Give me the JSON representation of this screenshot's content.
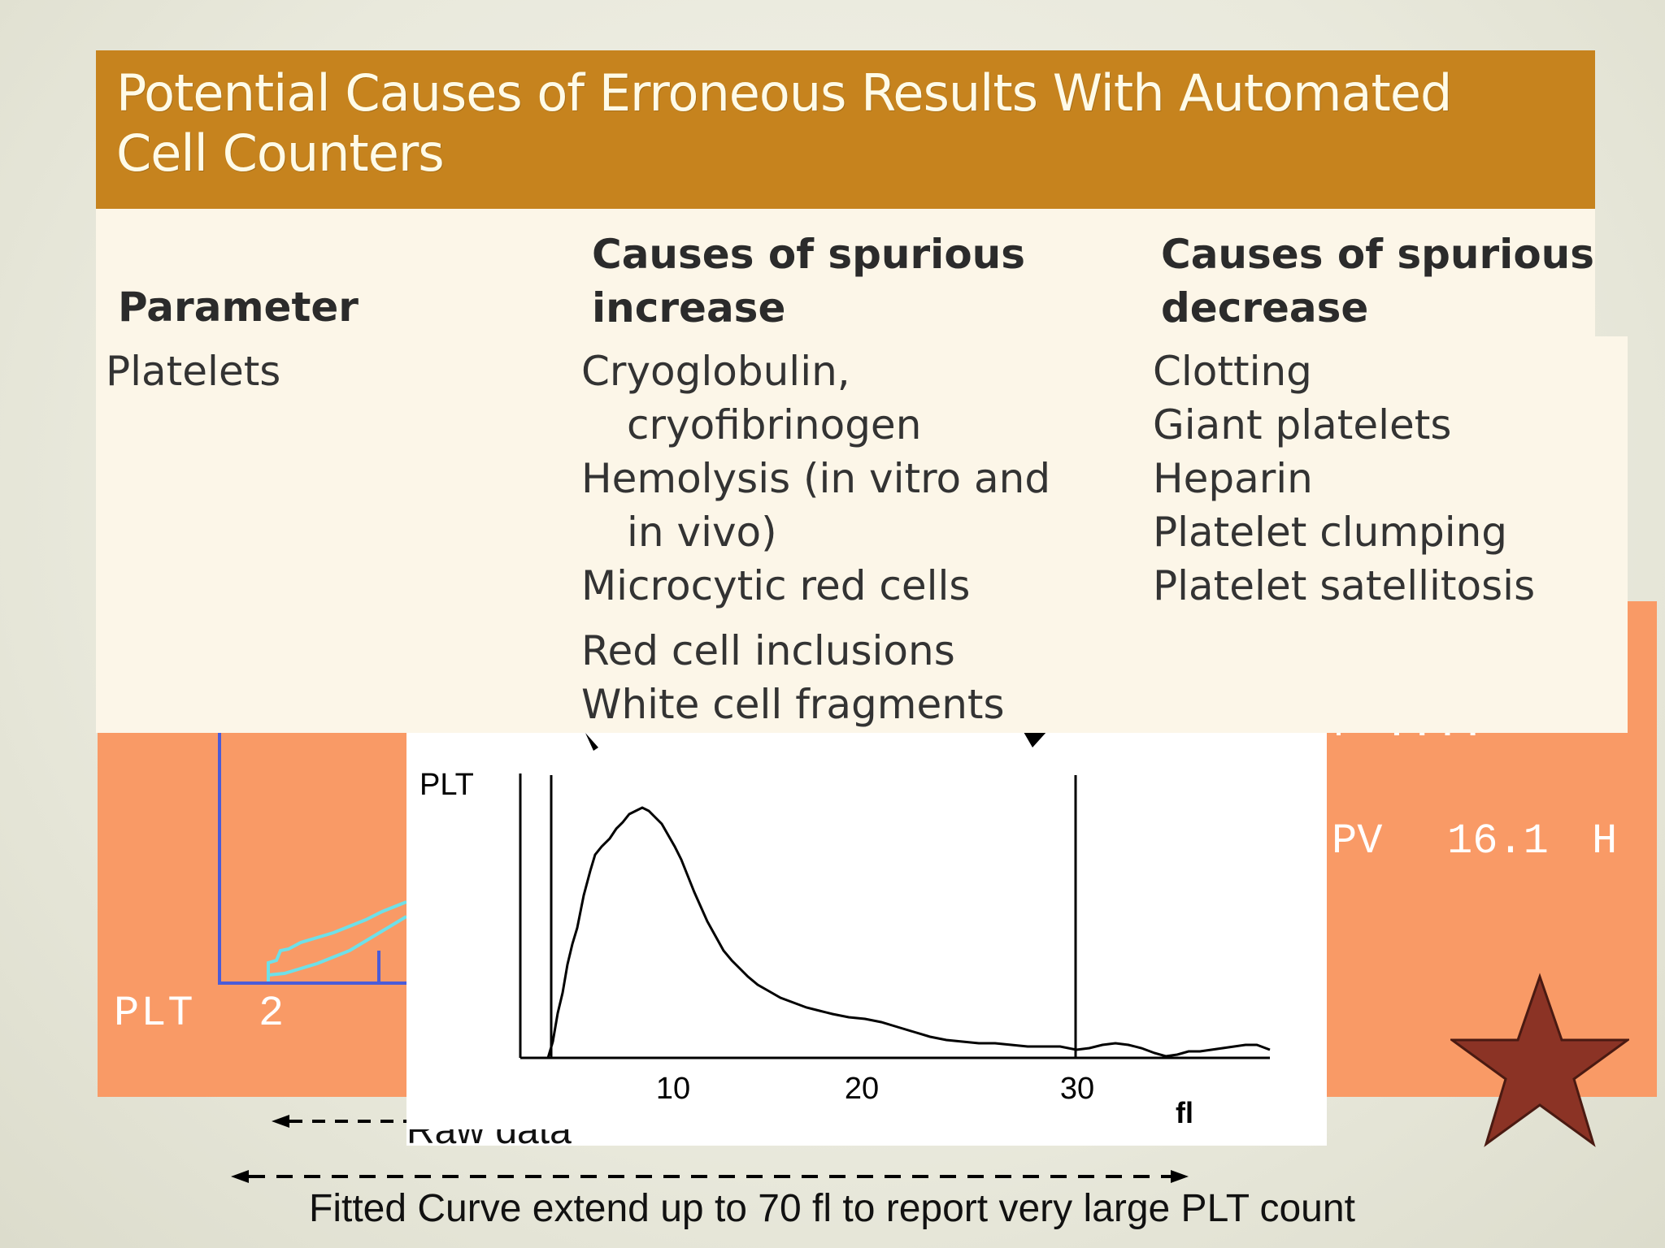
{
  "table": {
    "title_line1": "Potential Causes of Erroneous Results With Automated",
    "title_line2": "Cell Counters",
    "col_parameter": "Parameter",
    "col_increase_line1": "Causes of spurious",
    "col_increase_line2": "increase",
    "col_decrease_line1": "Causes of spurious",
    "col_decrease_line2": "decrease",
    "row": {
      "parameter": "Platelets",
      "increase": [
        {
          "text": "Cryoglobulin,",
          "indent": false
        },
        {
          "text": "cryofibrinogen",
          "indent": true
        },
        {
          "text": "Hemolysis (in vitro and",
          "indent": false
        },
        {
          "text": "in vivo)",
          "indent": true
        },
        {
          "text": "Microcytic red cells",
          "indent": false
        },
        {
          "text": "Red cell inclusions",
          "indent": false
        },
        {
          "text": "White cell fragments",
          "indent": false
        }
      ],
      "decrease": [
        "Clotting",
        "Giant platelets",
        "Heparin",
        "Platelet clumping",
        "Platelet satellitosis"
      ]
    }
  },
  "analyzer": {
    "plt_label": "PLT",
    "plt_value": "2",
    "mpv_label": "PV",
    "mpv_value": "16.1",
    "mpv_flag": "H",
    "cut_text": "P  ...."
  },
  "histogram": {
    "y_label": "PLT",
    "x_ticks": [
      "10",
      "20",
      "30"
    ],
    "x_unit": "fl",
    "colors": {
      "line": "#000000",
      "background": "#ffffff"
    }
  },
  "annotations": {
    "raw_data": "Raw data",
    "fitted_curve": "Fitted Curve extend up to 70 fl to report very large PLT count"
  },
  "colors": {
    "header": "#c6831e",
    "card": "#fcf6e8",
    "analyzer": "#f99a66",
    "star": "#8b3325",
    "mini_hist_axis": "#4b5cd8",
    "mini_hist_curve": "#6ee0e8"
  }
}
